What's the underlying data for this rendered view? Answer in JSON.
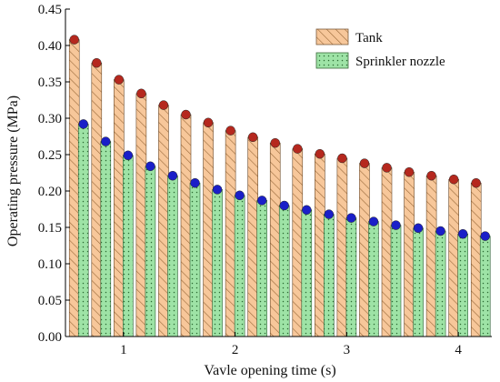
{
  "chart_data": {
    "type": "bar",
    "title": "",
    "xlabel": "Vavle opening time (s)",
    "ylabel": "Operating pressure (MPa)",
    "xlim": [
      0.48,
      4.3
    ],
    "ylim": [
      0.0,
      0.45
    ],
    "x_ticks": [
      1,
      2,
      3,
      4
    ],
    "y_ticks": [
      0.0,
      0.05,
      0.1,
      0.15,
      0.2,
      0.25,
      0.3,
      0.35,
      0.4,
      0.45
    ],
    "y_tick_labels": [
      "0.00",
      "0.05",
      "0.10",
      "0.15",
      "0.20",
      "0.25",
      "0.30",
      "0.35",
      "0.40",
      "0.45"
    ],
    "x_tick_labels": [
      "1",
      "2",
      "3",
      "4"
    ],
    "grid": false,
    "legend_position": "top-right",
    "x": [
      0.6,
      0.8,
      1.0,
      1.2,
      1.4,
      1.6,
      1.8,
      2.0,
      2.2,
      2.4,
      2.6,
      2.8,
      3.0,
      3.2,
      3.4,
      3.6,
      3.8,
      4.0,
      4.2
    ],
    "series": [
      {
        "name": "Tank",
        "color": "#f7c79a",
        "marker_color": "#b5281e",
        "hatch": "diagonal",
        "values": [
          0.408,
          0.376,
          0.353,
          0.334,
          0.318,
          0.305,
          0.294,
          0.283,
          0.274,
          0.266,
          0.258,
          0.251,
          0.245,
          0.238,
          0.232,
          0.226,
          0.221,
          0.216,
          0.211
        ]
      },
      {
        "name": "Sprinkler nozzle",
        "color": "#9ee3a6",
        "marker_color": "#1a1fc8",
        "hatch": "dots",
        "values": [
          0.292,
          0.268,
          0.249,
          0.234,
          0.221,
          0.211,
          0.202,
          0.194,
          0.187,
          0.18,
          0.174,
          0.168,
          0.163,
          0.158,
          0.153,
          0.149,
          0.145,
          0.141,
          0.138
        ]
      }
    ]
  }
}
